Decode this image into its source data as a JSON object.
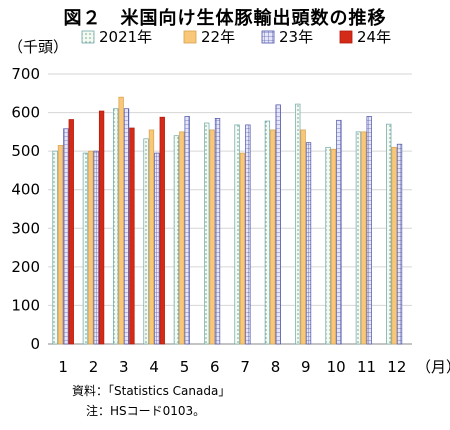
{
  "title": "図２　米国向け生体豚輸出頭数の推移",
  "notes": {
    "source": "資料：「Statistics Canada」",
    "note": "注：HSコード0103。"
  },
  "chart_data": {
    "type": "bar",
    "ylabel": "（千頭）",
    "xlabel": "（月）",
    "ylim": [
      0,
      700
    ],
    "yticks": [
      0,
      100,
      200,
      300,
      400,
      500,
      600,
      700
    ],
    "categories": [
      "1",
      "2",
      "3",
      "4",
      "5",
      "6",
      "7",
      "8",
      "9",
      "10",
      "11",
      "12"
    ],
    "legend_position": "top",
    "series": [
      {
        "name": "2021年",
        "values": [
          500,
          495,
          610,
          532,
          540,
          573,
          568,
          578,
          622,
          510,
          550,
          570
        ],
        "fill": "#f2f9ee",
        "stroke": "#6ea6a8",
        "pattern": "dots"
      },
      {
        "name": "22年",
        "values": [
          515,
          500,
          640,
          555,
          550,
          555,
          495,
          555,
          555,
          505,
          550,
          510
        ],
        "fill": "#f8c779",
        "stroke": "#d8a04b",
        "pattern": "solid"
      },
      {
        "name": "23年",
        "values": [
          558,
          500,
          610,
          495,
          590,
          585,
          568,
          620,
          522,
          580,
          590,
          518
        ],
        "fill": "#dedef6",
        "stroke": "#4a52a8",
        "pattern": "grid"
      },
      {
        "name": "24年",
        "values": [
          582,
          604,
          560,
          588,
          null,
          null,
          null,
          null,
          null,
          null,
          null,
          null
        ],
        "fill": "#d42a18",
        "stroke": "#b01a0c",
        "pattern": "solid"
      }
    ]
  }
}
